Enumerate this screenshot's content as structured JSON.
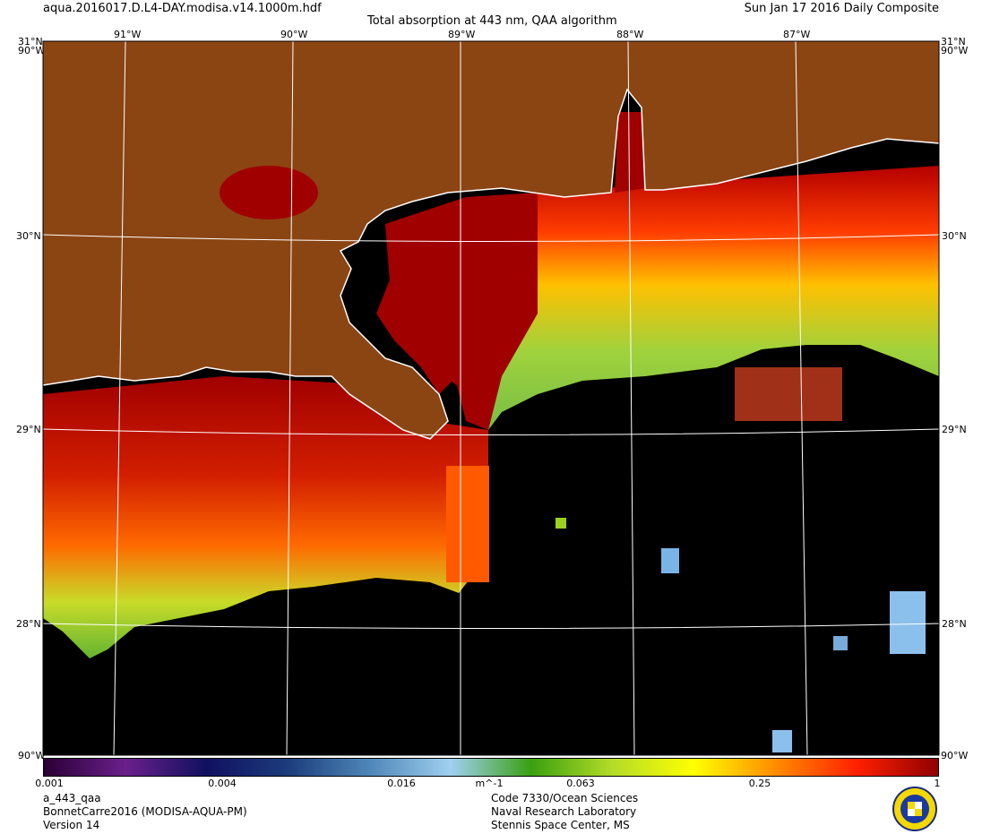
{
  "header": {
    "filename": "aqua.2016017.D.L4-DAY.modisa.v14.1000m.hdf",
    "title": "Total absorption at 443 nm, QAA algorithm",
    "date": "Sun Jan 17 2016 Daily Composite"
  },
  "map": {
    "lon_labels": [
      "91°W",
      "90°W",
      "89°W",
      "88°W",
      "87°W"
    ],
    "lat_labels": [
      "30°N",
      "29°N",
      "28°N"
    ],
    "corner_top_left": "31°N",
    "corner_top_right": "31°N",
    "corner_side": "90°W",
    "corner_bottom_left": "90°W",
    "corner_bottom_right": "90°W",
    "colors": {
      "land": "#8b4513",
      "nodata": "#000000",
      "coast": "#ffffff",
      "high_absorption": "#a00000",
      "mid_absorption": "#ff8000",
      "low_absorption": "#8cc83c"
    }
  },
  "colorbar": {
    "ticks": [
      "0.001",
      "0.004",
      "0.016",
      "m^-1",
      "0.063",
      "0.25",
      "1"
    ],
    "stops": [
      "#2a0035",
      "#6a1f8a",
      "#101060",
      "#1c3c7c",
      "#4e86b8",
      "#a0d0f0",
      "#3aa010",
      "#b4dc28",
      "#ffff00",
      "#ff8c00",
      "#ff2000",
      "#900000"
    ]
  },
  "footer": {
    "variable": "a_443_qaa",
    "dataset": "BonnetCarre2016 (MODISA-AQUA-PM)",
    "version": "Version 14",
    "org_line1": "Code 7330/Ocean Sciences",
    "org_line2": "Naval Research Laboratory",
    "org_line3": "Stennis Space Center, MS"
  }
}
